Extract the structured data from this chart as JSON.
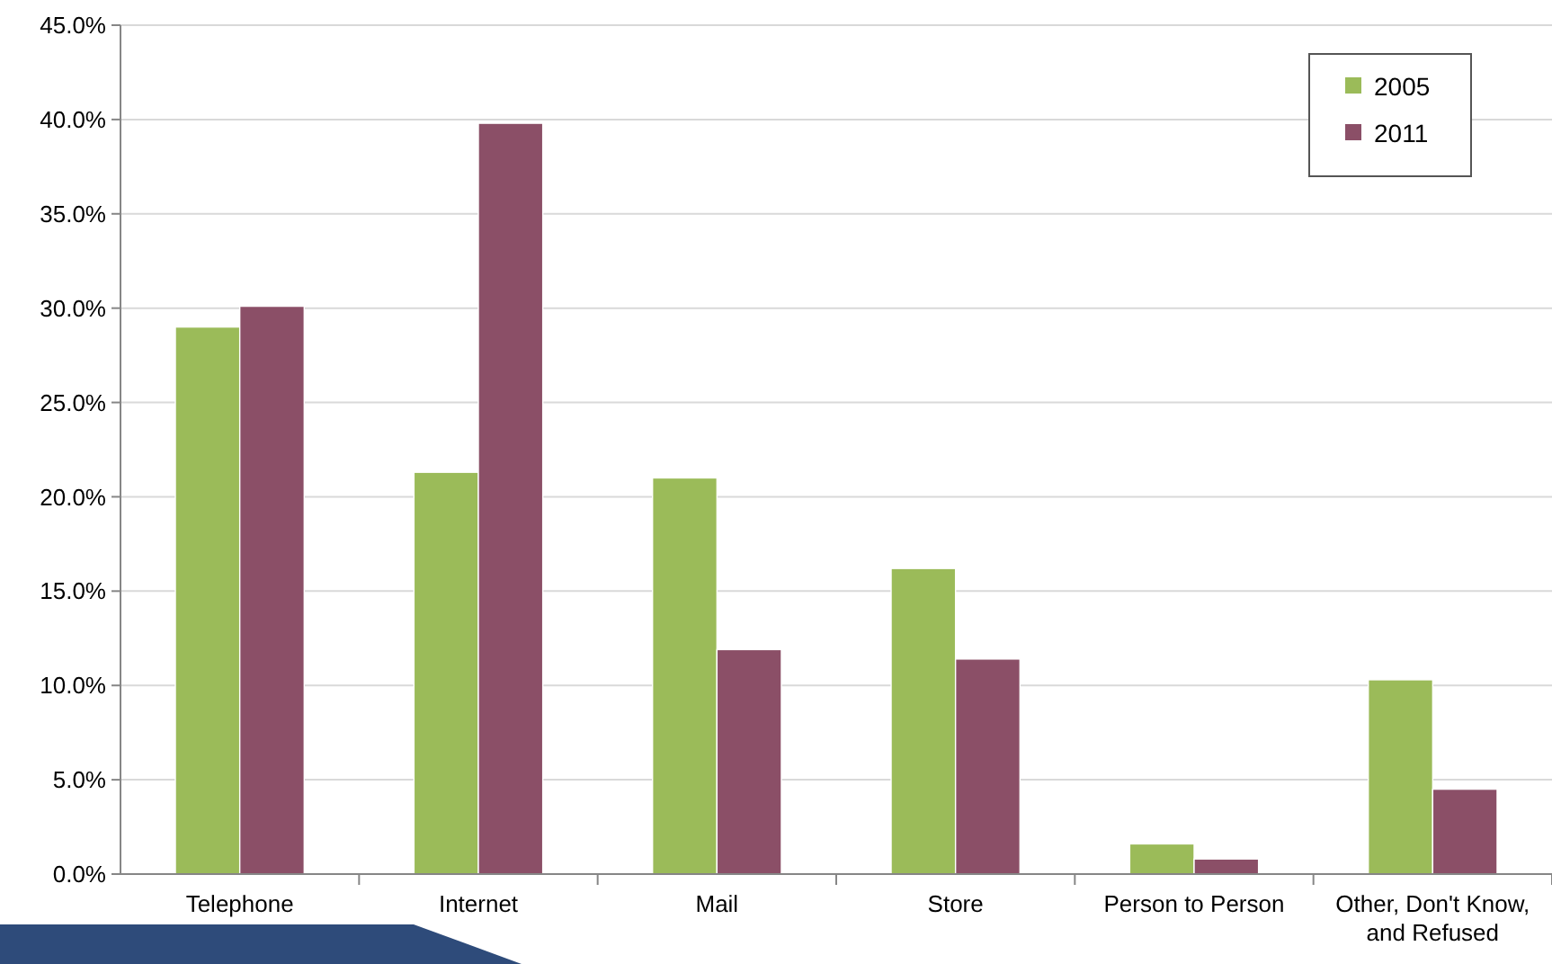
{
  "chart_data": {
    "type": "bar",
    "categories": [
      "Telephone",
      "Internet",
      "Mail",
      "Store",
      "Person to Person",
      "Other, Don't Know, and Refused"
    ],
    "series": [
      {
        "name": "2005",
        "color": "#9bbb59",
        "values": [
          29.0,
          21.3,
          21.0,
          16.2,
          1.6,
          10.3
        ]
      },
      {
        "name": "2011",
        "color": "#8b4f67",
        "values": [
          30.1,
          39.8,
          11.9,
          11.4,
          0.8,
          4.5
        ]
      }
    ],
    "ylim": [
      0,
      45
    ],
    "yticks": [
      {
        "value": 0,
        "label": "0.0%"
      },
      {
        "value": 5,
        "label": "5.0%"
      },
      {
        "value": 10,
        "label": "10.0%"
      },
      {
        "value": 15,
        "label": "15.0%"
      },
      {
        "value": 20,
        "label": "20.0%"
      },
      {
        "value": 25,
        "label": "25.0%"
      },
      {
        "value": 30,
        "label": "30.0%"
      },
      {
        "value": 35,
        "label": "35.0%"
      },
      {
        "value": 40,
        "label": "40.0%"
      },
      {
        "value": 45,
        "label": "45.0%"
      }
    ],
    "grid": true,
    "legend": "top right"
  }
}
